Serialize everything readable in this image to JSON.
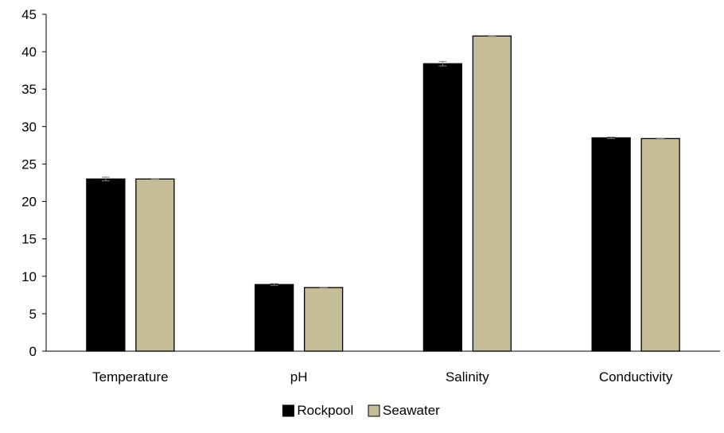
{
  "chart_data": {
    "type": "bar",
    "categories": [
      "Temperature",
      "pH",
      "Salinity",
      "Conductivity"
    ],
    "series": [
      {
        "name": "Rockpool",
        "values": [
          23.0,
          8.9,
          38.4,
          28.5
        ],
        "errors": [
          0.25,
          0.12,
          0.3,
          0.1
        ],
        "color": "#000000"
      },
      {
        "name": "Seawater",
        "values": [
          23.0,
          8.5,
          42.1,
          28.4
        ],
        "errors": [
          0.05,
          0.05,
          0.05,
          0.05
        ],
        "color": "#c4bd97"
      }
    ],
    "title": "",
    "xlabel": "",
    "ylabel": "",
    "ylim": [
      0,
      45
    ],
    "yticks": [
      0,
      5,
      10,
      15,
      20,
      25,
      30,
      35,
      40,
      45
    ],
    "grid": false,
    "legend_position": "bottom"
  }
}
